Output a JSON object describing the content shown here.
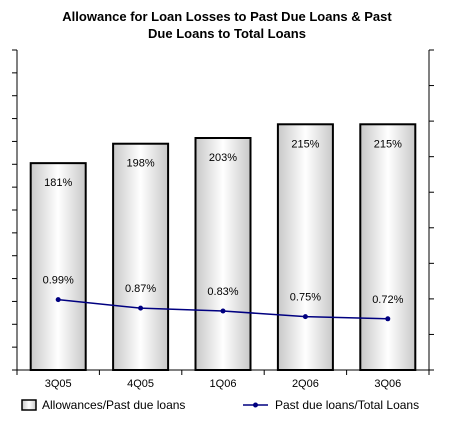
{
  "chart_data": {
    "type": "bar",
    "title": [
      "Allowance for Loan Losses to Past Due Loans &  Past",
      "Due Loans to Total Loans"
    ],
    "categories": [
      "3Q05",
      "4Q05",
      "1Q06",
      "2Q06",
      "3Q06"
    ],
    "series": [
      {
        "name": "Allowances/Past due loans",
        "type": "bar",
        "values": [
          181,
          198,
          203,
          215,
          215
        ],
        "labels": [
          "181%",
          "198%",
          "203%",
          "215%",
          "215%"
        ],
        "axis": "left",
        "ylim": [
          0,
          280
        ]
      },
      {
        "name": "Past due loans/Total Loans",
        "type": "line",
        "values": [
          0.99,
          0.87,
          0.83,
          0.75,
          0.72
        ],
        "labels": [
          "0.99%",
          "0.87%",
          "0.83%",
          "0.75%",
          "0.72%"
        ],
        "axis": "right",
        "ylim": [
          0,
          4.5
        ],
        "color": "#000080"
      }
    ],
    "grid": false,
    "legend_position": "bottom",
    "colors": {
      "bar_fill_edge": "#c8c8c8",
      "bar_fill_center": "#ffffff",
      "line": "#000080",
      "axis": "#000000"
    }
  }
}
